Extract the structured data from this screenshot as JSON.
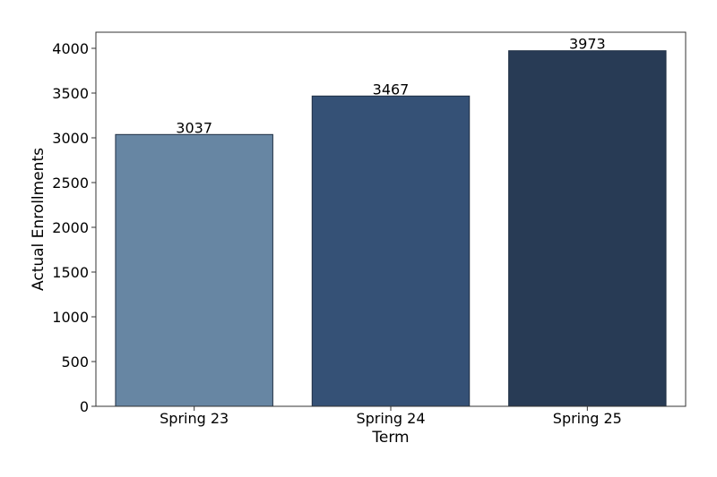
{
  "chart_data": {
    "type": "bar",
    "title": "",
    "xlabel": "Term",
    "ylabel": "Actual Enrollments",
    "categories": [
      "Spring 23",
      "Spring 24",
      "Spring 25"
    ],
    "values": [
      3037,
      3467,
      3973
    ],
    "data_labels": [
      "3037",
      "3467",
      "3973"
    ],
    "bar_colors": [
      "#6786a3",
      "#355176",
      "#283b55"
    ],
    "ylim": [
      0,
      4180
    ],
    "yticks": [
      0,
      500,
      1000,
      1500,
      2000,
      2500,
      3000,
      3500,
      4000
    ],
    "grid": false,
    "legend": "none"
  }
}
